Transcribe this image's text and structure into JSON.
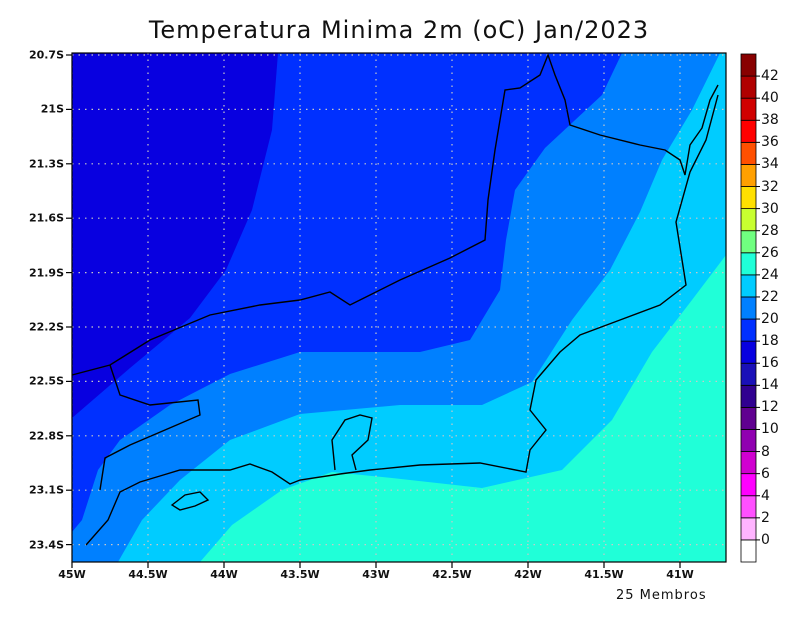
{
  "title": "Temperatura Minima 2m (oC) Jan/2023",
  "footer": "25 Membros",
  "lat_labels": [
    "20.7S",
    "21S",
    "21.3S",
    "21.6S",
    "21.9S",
    "22.2S",
    "22.5S",
    "22.8S",
    "23.1S",
    "23.4S"
  ],
  "lon_labels": [
    "45W",
    "44.5W",
    "44W",
    "43.5W",
    "43W",
    "42.5W",
    "42W",
    "41.5W",
    "41W"
  ],
  "colorbar": {
    "labels": [
      "0",
      "2",
      "4",
      "6",
      "8",
      "10",
      "12",
      "14",
      "16",
      "18",
      "20",
      "22",
      "24",
      "26",
      "28",
      "30",
      "32",
      "34",
      "36",
      "38",
      "40",
      "42"
    ],
    "colors": [
      "#ffffff",
      "#ffb4ff",
      "#ff50ff",
      "#ff00ff",
      "#d000d0",
      "#9000b0",
      "#600090",
      "#300090",
      "#1a10b8",
      "#0800e0",
      "#0030ff",
      "#0080ff",
      "#00ccff",
      "#20ffd8",
      "#70ff80",
      "#c8ff30",
      "#ffe000",
      "#ffa000",
      "#ff5000",
      "#ff0000",
      "#d00000",
      "#b00000",
      "#880000"
    ]
  },
  "field_colors": {
    "t16_18": "#0800e0",
    "t18_20": "#0030ff",
    "t20_22": "#0080ff",
    "t22_24": "#00ccff",
    "t24_26": "#20ffd8"
  }
}
